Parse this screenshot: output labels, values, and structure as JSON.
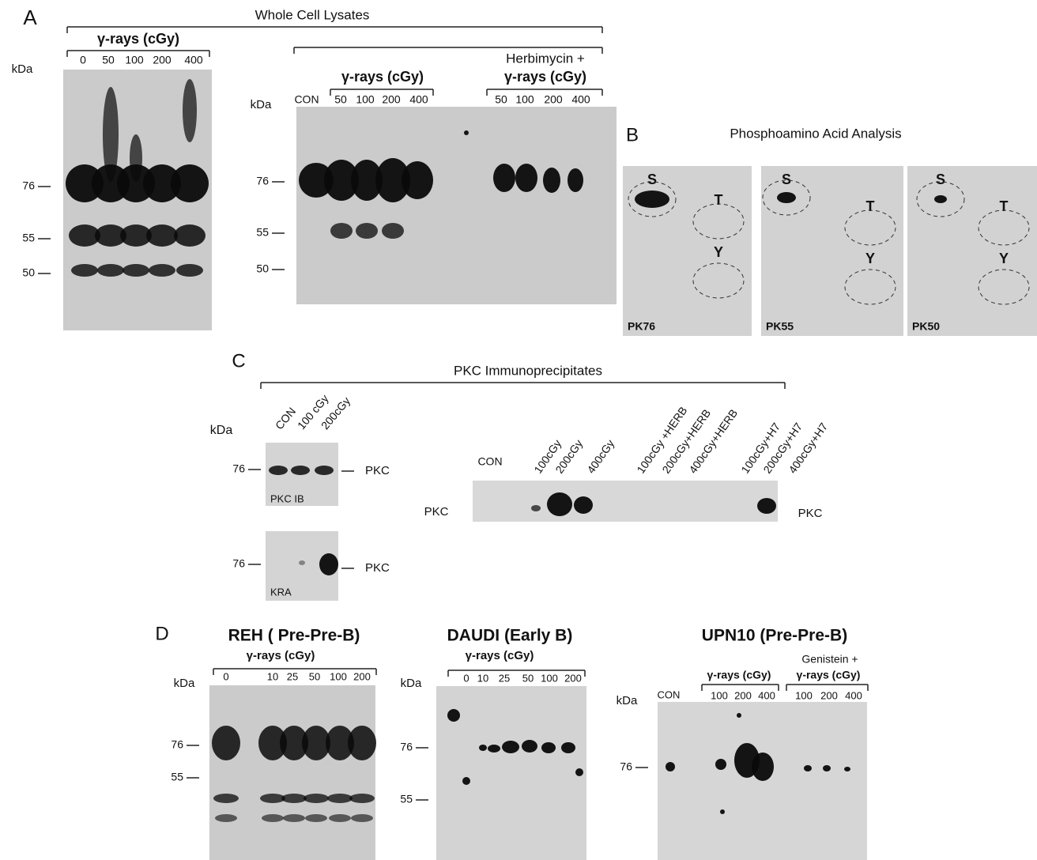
{
  "panel_a": {
    "label": "A",
    "title": "Whole Cell Lysates",
    "left_blot": {
      "treatment": "γ-rays (cGy)",
      "lanes": [
        "0",
        "50",
        "100",
        "200",
        "400"
      ],
      "unit": "kDa",
      "markers": [
        "76",
        "55",
        "50"
      ]
    },
    "right_blot": {
      "control": "CON",
      "treatment": "γ-rays (cGy)",
      "lanes": [
        "50",
        "100",
        "200",
        "400"
      ],
      "combo_treatment": [
        "Herbimycin +",
        "γ-rays (cGy)"
      ],
      "combo_lanes": [
        "50",
        "100",
        "200",
        "400"
      ],
      "unit": "kDa",
      "markers": [
        "76",
        "55",
        "50"
      ]
    }
  },
  "panel_b": {
    "label": "B",
    "title": "Phosphoamino Acid Analysis",
    "plates": [
      {
        "residues": [
          "S",
          "T",
          "Y"
        ],
        "name": "PK76"
      },
      {
        "residues": [
          "S",
          "T",
          "Y"
        ],
        "name": "PK55"
      },
      {
        "residues": [
          "S",
          "T",
          "Y"
        ],
        "name": "PK50"
      }
    ]
  },
  "panel_c": {
    "label": "C",
    "title": "PKC Immunoprecipitates",
    "unit": "kDa",
    "lanes": [
      "CON",
      "100 cGy",
      "200cGy"
    ],
    "immunoblot": {
      "marker": "76",
      "band": "PKC",
      "name": "PKC IB"
    },
    "kinase_assay": {
      "marker": "76",
      "band": "PKC",
      "name": "KRA"
    },
    "treatment_blot": {
      "control": "CON",
      "lanes": [
        "100cGy",
        "200cGy",
        "400cGy",
        "100cGy +HERB",
        "200cGy+HERB",
        "400cGy+HERB",
        "100cGy+H7",
        "200cGy+H7",
        "400cGy+H7"
      ],
      "band_left": "PKC",
      "band_right": "PKC"
    }
  },
  "panel_d": {
    "label": "D",
    "blots": [
      {
        "title": "REH ( Pre-Pre-B)",
        "treatment": "γ-rays (cGy)",
        "lanes": [
          "0",
          "10",
          "25",
          "50",
          "100",
          "200"
        ],
        "unit": "kDa",
        "markers": [
          "76",
          "55"
        ]
      },
      {
        "title": "DAUDI (Early B)",
        "treatment": "γ-rays (cGy)",
        "lanes": [
          "0",
          "10",
          "25",
          "50",
          "100",
          "200"
        ],
        "unit": "kDa",
        "markers": [
          "76",
          "55"
        ]
      },
      {
        "title": "UPN10 (Pre-Pre-B)",
        "control": "CON",
        "treatment": "γ-rays (cGy)",
        "lanes": [
          "100",
          "200",
          "400"
        ],
        "combo_treatment": [
          "Genistein +",
          "γ-rays (cGy)"
        ],
        "combo_lanes": [
          "100",
          "200",
          "400"
        ],
        "unit": "kDa",
        "markers": [
          "76"
        ]
      }
    ]
  }
}
